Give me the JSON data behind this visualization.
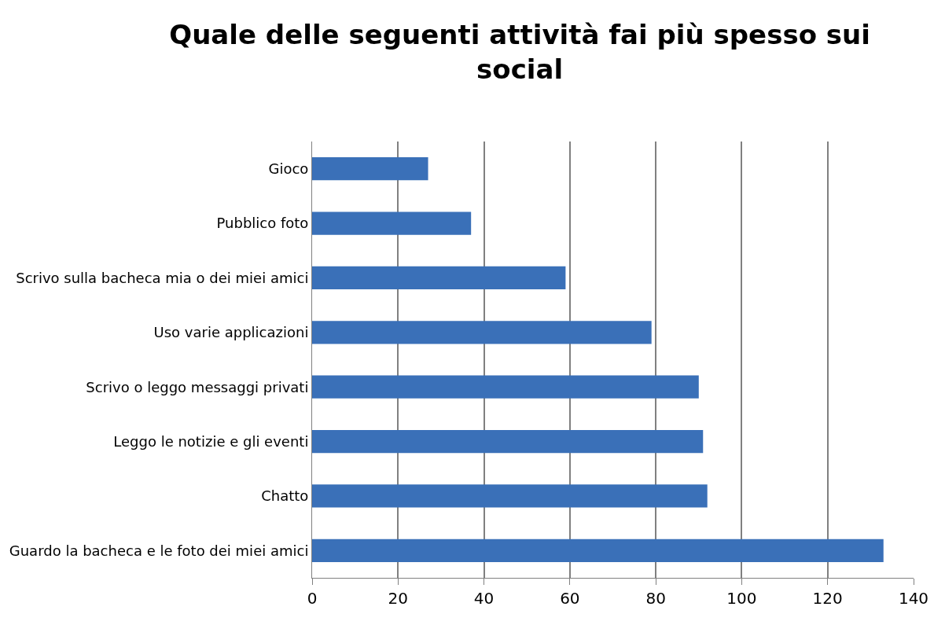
{
  "chart_data": {
    "type": "bar",
    "orientation": "horizontal",
    "title": "Quale delle seguenti attività fai più spesso sui social",
    "categories": [
      "Gioco",
      "Pubblico foto",
      "Scrivo sulla bacheca mia o dei miei amici",
      "Uso varie applicazioni",
      "Scrivo o leggo messaggi privati",
      "Leggo le notizie e gli eventi",
      "Chatto",
      "Guardo la bacheca e le foto dei miei amici"
    ],
    "values": [
      27,
      37,
      59,
      79,
      90,
      91,
      92,
      133
    ],
    "color": "#3a70b8",
    "xlim": [
      0,
      140
    ],
    "xticks": [
      0,
      20,
      40,
      60,
      80,
      100,
      120,
      140
    ],
    "grid": "x"
  }
}
